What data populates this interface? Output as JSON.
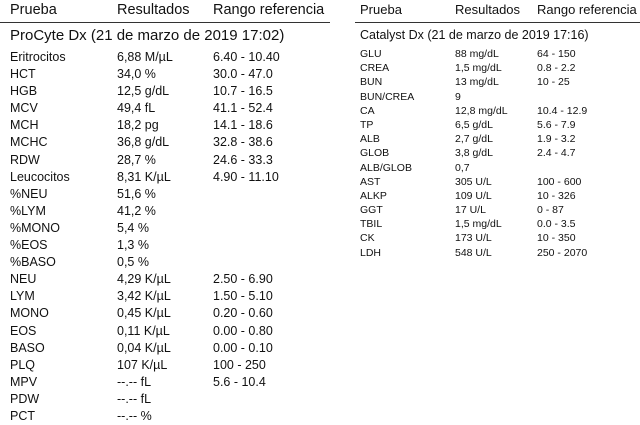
{
  "left": {
    "headers": {
      "test": "Prueba",
      "result": "Resultados",
      "range": "Rango referencia"
    },
    "subtitle": "ProCyte Dx (21 de marzo de 2019 17:02)",
    "rows": [
      {
        "test": "Eritrocitos",
        "result": "6,88 M/µL",
        "range": "6.40 - 10.40"
      },
      {
        "test": "HCT",
        "result": "34,0 %",
        "range": "30.0 - 47.0"
      },
      {
        "test": "HGB",
        "result": "12,5 g/dL",
        "range": "10.7 - 16.5"
      },
      {
        "test": "MCV",
        "result": "49,4 fL",
        "range": "41.1 - 52.4"
      },
      {
        "test": "MCH",
        "result": "18,2 pg",
        "range": "14.1 - 18.6"
      },
      {
        "test": "MCHC",
        "result": "36,8 g/dL",
        "range": "32.8 - 38.6"
      },
      {
        "test": "RDW",
        "result": "28,7 %",
        "range": "24.6 - 33.3"
      },
      {
        "test": "Leucocitos",
        "result": "8,31 K/µL",
        "range": "4.90 - 11.10"
      },
      {
        "test": "%NEU",
        "result": "51,6 %",
        "range": ""
      },
      {
        "test": "%LYM",
        "result": "41,2 %",
        "range": ""
      },
      {
        "test": "%MONO",
        "result": "5,4 %",
        "range": ""
      },
      {
        "test": "%EOS",
        "result": "1,3 %",
        "range": ""
      },
      {
        "test": "%BASO",
        "result": "0,5 %",
        "range": ""
      },
      {
        "test": "NEU",
        "result": "4,29 K/µL",
        "range": "2.50 - 6.90"
      },
      {
        "test": "LYM",
        "result": "3,42 K/µL",
        "range": "1.50 - 5.10"
      },
      {
        "test": "MONO",
        "result": "0,45 K/µL",
        "range": "0.20 - 0.60"
      },
      {
        "test": "EOS",
        "result": "0,11 K/µL",
        "range": "0.00 - 0.80"
      },
      {
        "test": "BASO",
        "result": "0,04 K/µL",
        "range": "0.00 - 0.10"
      },
      {
        "test": "PLQ",
        "result": "107 K/µL",
        "range": "100 - 250"
      },
      {
        "test": "MPV",
        "result": "--.--  fL",
        "range": "5.6 - 10.4"
      },
      {
        "test": "PDW",
        "result": "--.--  fL",
        "range": ""
      },
      {
        "test": "PCT",
        "result": "--.--  %",
        "range": ""
      }
    ]
  },
  "right": {
    "headers": {
      "test": "Prueba",
      "result": "Resultados",
      "range": "Rango referencia"
    },
    "subtitle": "Catalyst Dx (21 de marzo de 2019 17:16)",
    "rows": [
      {
        "test": "GLU",
        "result": "88 mg/dL",
        "range": "64 - 150"
      },
      {
        "test": "CREA",
        "result": "1,5 mg/dL",
        "range": "0.8 - 2.2"
      },
      {
        "test": "BUN",
        "result": "13 mg/dL",
        "range": "10 - 25"
      },
      {
        "test": "BUN/CREA",
        "result": "9",
        "range": ""
      },
      {
        "test": "CA",
        "result": "12,8 mg/dL",
        "range": "10.4 - 12.9"
      },
      {
        "test": "TP",
        "result": "6,5 g/dL",
        "range": "5.6 - 7.9"
      },
      {
        "test": "ALB",
        "result": "2,7 g/dL",
        "range": "1.9 - 3.2"
      },
      {
        "test": "GLOB",
        "result": "3,8 g/dL",
        "range": "2.4 - 4.7"
      },
      {
        "test": "ALB/GLOB",
        "result": "0,7",
        "range": ""
      },
      {
        "test": "AST",
        "result": "305 U/L",
        "range": "100 - 600"
      },
      {
        "test": "ALKP",
        "result": "109 U/L",
        "range": "10 - 326"
      },
      {
        "test": "GGT",
        "result": "17 U/L",
        "range": "0 - 87"
      },
      {
        "test": "TBIL",
        "result": "1,5 mg/dL",
        "range": "0.0 - 3.5"
      },
      {
        "test": "CK",
        "result": "173 U/L",
        "range": "10 - 350"
      },
      {
        "test": "LDH",
        "result": "548 U/L",
        "range": "250 - 2070"
      }
    ]
  }
}
